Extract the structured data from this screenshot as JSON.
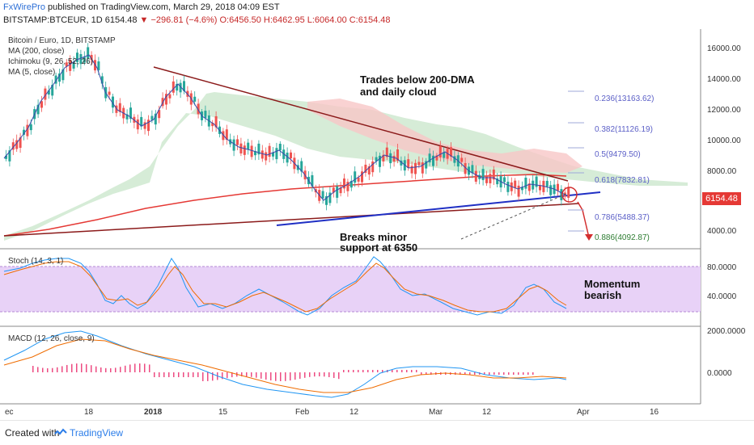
{
  "header": {
    "author": "FxWirePro",
    "published_text": "published on TradingView.com, March 29, 2018 04:09 EST",
    "symbol": "BITSTAMP:BTCEUR, 1D",
    "last": "6154.48",
    "change": "▼ −296.81 (−4.6%)",
    "ohlc": "O:6456.50 H:6462.95 L:6064.00 C:6154.48"
  },
  "legend_main": [
    "Bitcoin / Euro, 1D, BITSTAMP",
    "MA (200, close)",
    "Ichimoku (9, 26, 52, 26)",
    "MA (5, close)"
  ],
  "legend_stoch": "Stoch (14, 3, 1)",
  "legend_macd": "MACD (12, 26, close, 9)",
  "price_axis": [
    "16000.00",
    "14000.00",
    "12000.00",
    "10000.00",
    "8000.00",
    "4000.00"
  ],
  "stoch_axis": [
    "80.0000",
    "40.0000"
  ],
  "macd_axis": [
    "2000.0000",
    "0.0000"
  ],
  "time_axis": [
    "ec",
    "18",
    "2018",
    "15",
    "Feb",
    "12",
    "Mar",
    "12",
    "Apr",
    "16"
  ],
  "last_price_tag": "6154.48",
  "fib_levels": [
    "0.236(13163.62)",
    "0.382(11126.19)",
    "0.5(9479.50)",
    "0.618(7832.81)",
    "0.786(5488.37)",
    "0.886(4092.87)"
  ],
  "annotations": {
    "trades_below_1": "Trades below 200-DMA",
    "trades_below_2": "and daily cloud",
    "breaks_1": "Breaks minor",
    "breaks_2": "support at 6350",
    "momentum_1": "Momentum",
    "momentum_2": "bearish"
  },
  "footer": {
    "created": "Created with",
    "brand": "TradingView"
  },
  "colors": {
    "up": "#26a69a",
    "down": "#ef5350",
    "ma200": "#e53935",
    "ma5": "#3949ab",
    "cloud_green": "#a5d6a7",
    "cloud_red": "#f8bbbb",
    "trend_down": "#8b1a1a",
    "trend_up": "#1f2fc4",
    "stoch_band": "#e1c4f5",
    "fib_blue": "#5b5fc7",
    "fib_green": "#2e7d32"
  }
}
